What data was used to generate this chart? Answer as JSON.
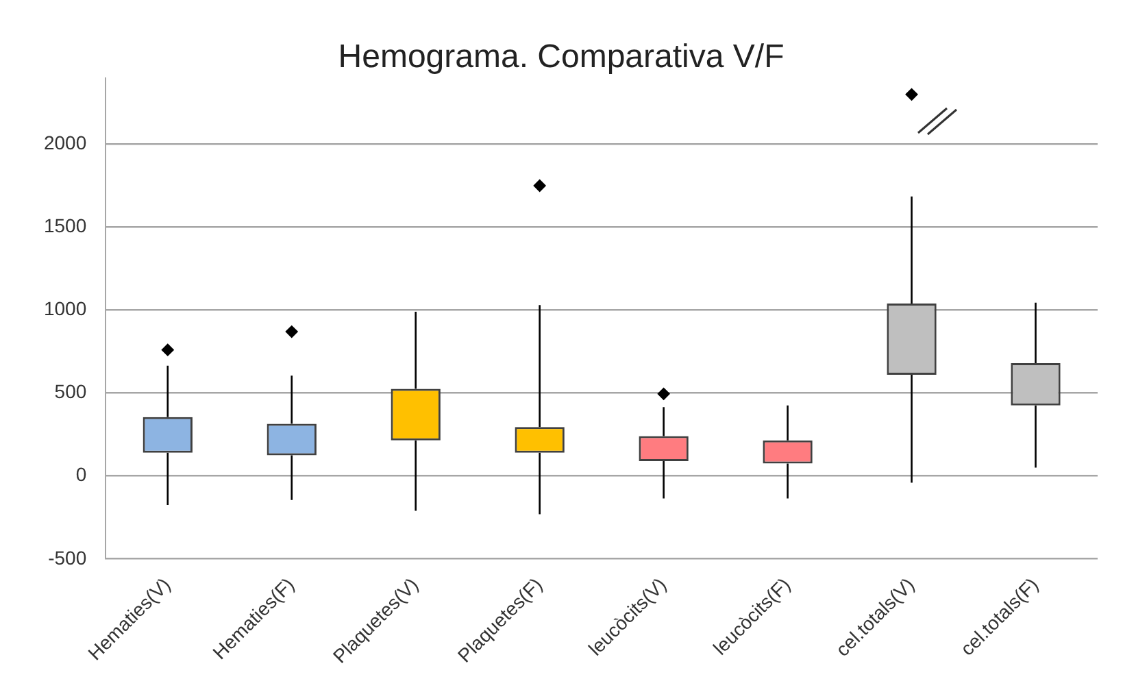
{
  "chart_data": {
    "type": "box",
    "title": "Hemograma. Comparativa V/F",
    "categories": [
      "Hematies(V)",
      "Hematies(F)",
      "Plaquetes(V)",
      "Plaquetes(F)",
      "leucòcits(V)",
      "leucòcits(F)",
      "cel.totals(V)",
      "cel.totals(F)"
    ],
    "colors": [
      "#8db4e2",
      "#8db4e2",
      "#ffc000",
      "#ffc000",
      "#ff7c80",
      "#ff7c80",
      "#bfbfbf",
      "#bfbfbf"
    ],
    "boxes": [
      {
        "low": -175,
        "q1": 140,
        "median": null,
        "q3": 355,
        "high": 665,
        "outliers": [
          760
        ]
      },
      {
        "low": -145,
        "q1": 125,
        "median": null,
        "q3": 315,
        "high": 605,
        "outliers": [
          870
        ]
      },
      {
        "low": -210,
        "q1": 215,
        "median": null,
        "q3": 525,
        "high": 990
      },
      {
        "low": -230,
        "q1": 140,
        "median": null,
        "q3": 295,
        "high": 1030,
        "outliers": [
          1750
        ]
      },
      {
        "low": -135,
        "q1": 90,
        "median": null,
        "q3": 240,
        "high": 415,
        "outliers": [
          495
        ]
      },
      {
        "low": -135,
        "q1": 75,
        "median": null,
        "q3": 215,
        "high": 425
      },
      {
        "low": -40,
        "q1": 610,
        "median": null,
        "q3": 1040,
        "high": 1685,
        "outliers": [
          2300
        ]
      },
      {
        "low": 50,
        "q1": 425,
        "median": null,
        "q3": 680,
        "high": 1045
      }
    ],
    "ylim": [
      -500,
      2400
    ],
    "yticks": [
      -500,
      0,
      500,
      1000,
      1500,
      2000
    ],
    "grid": "y",
    "legend": false
  }
}
